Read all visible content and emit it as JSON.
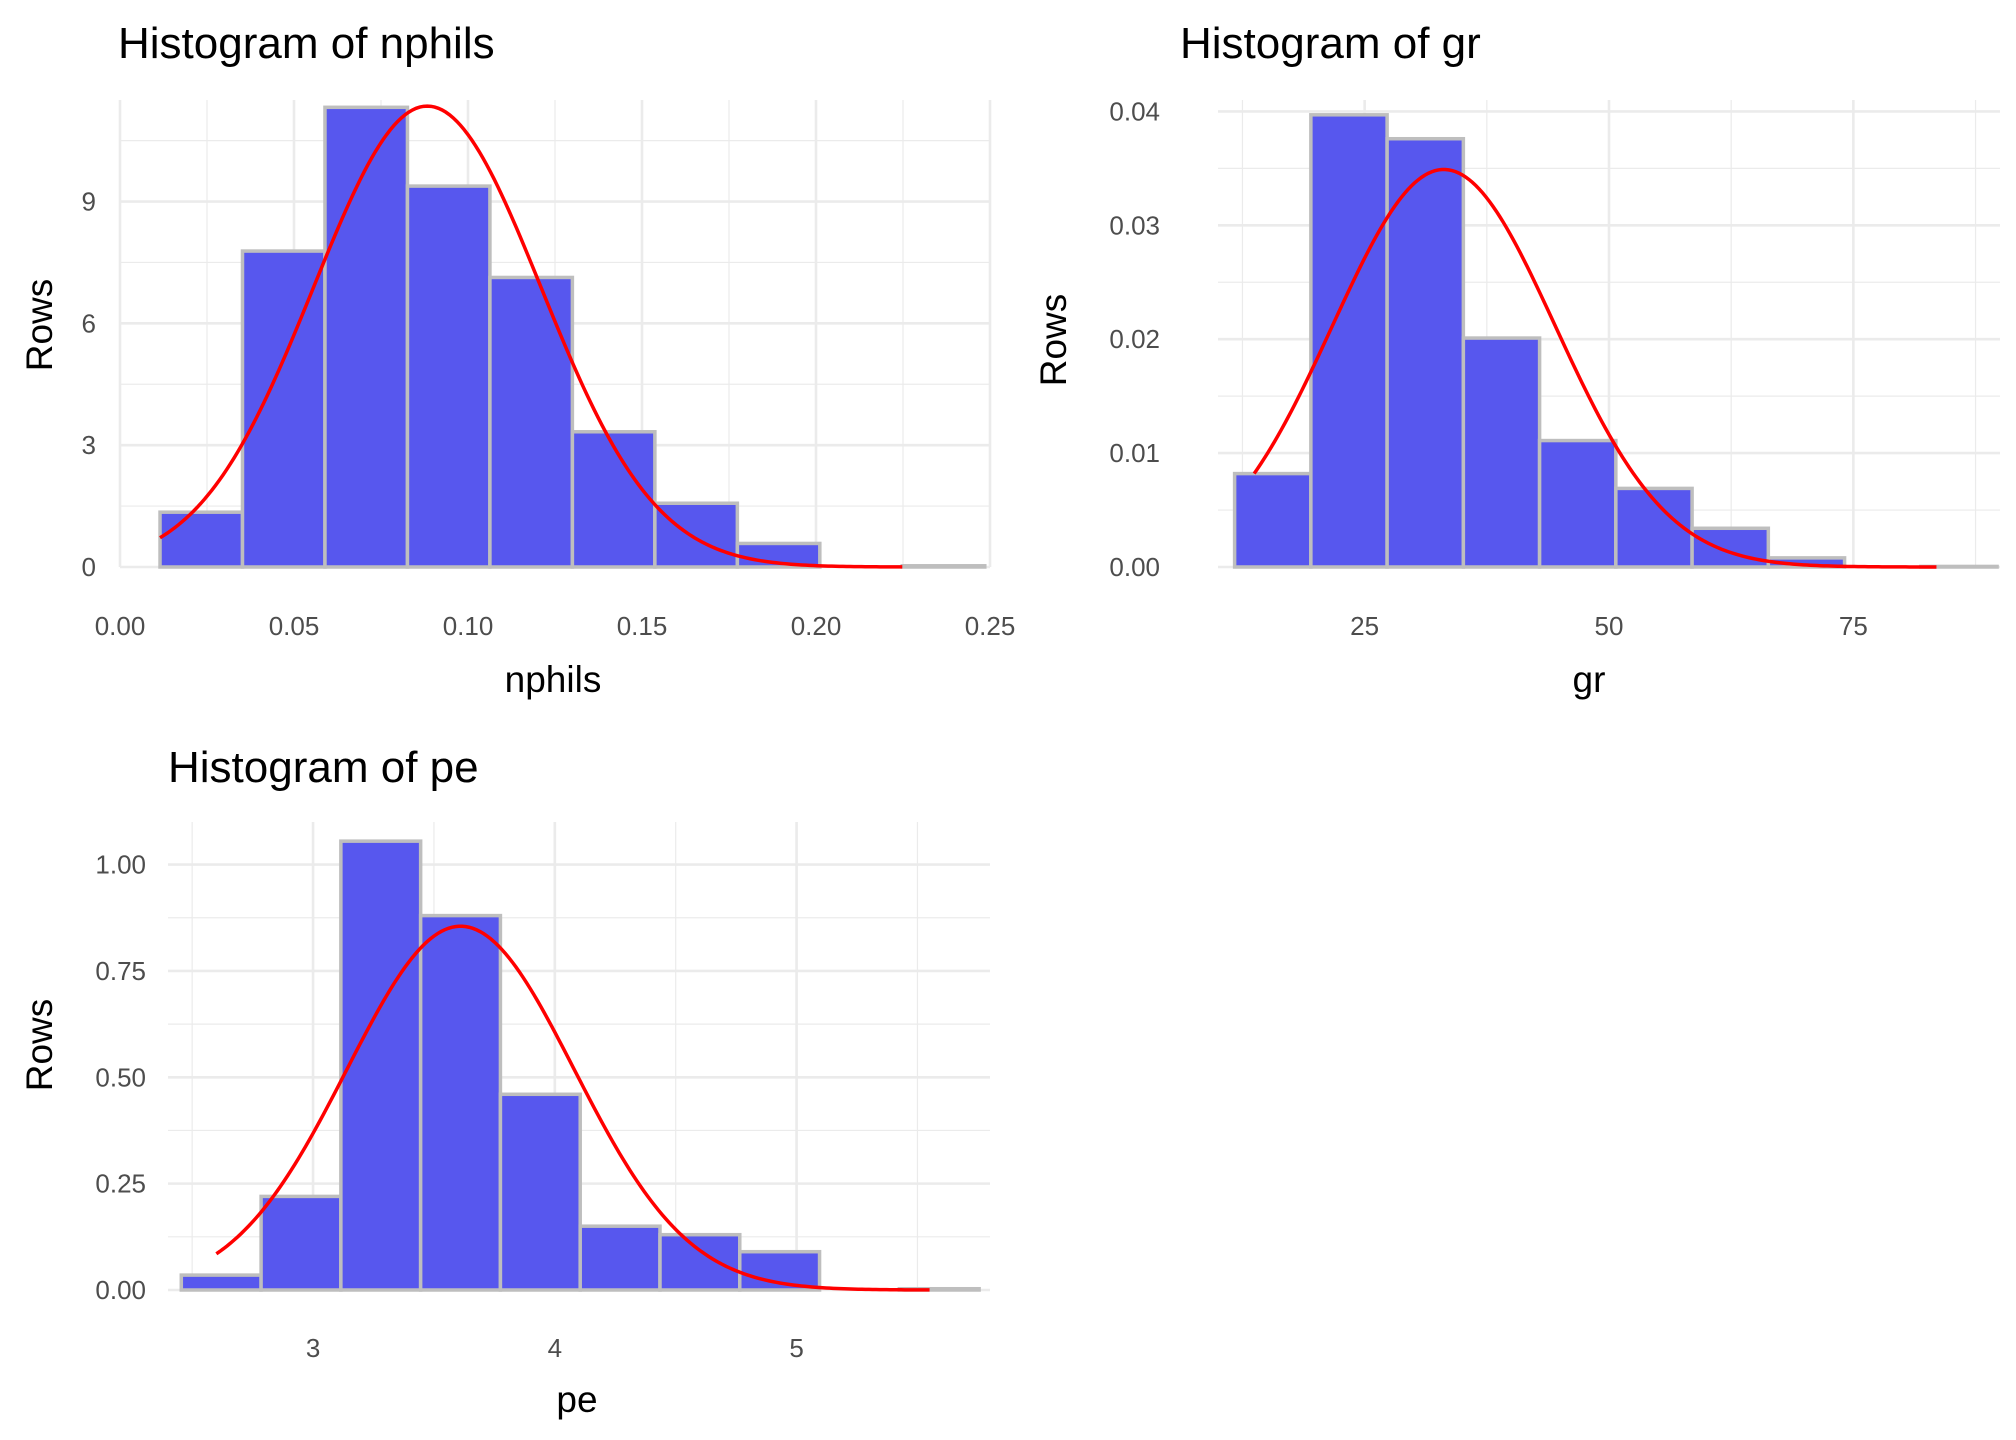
{
  "chart_data": [
    {
      "type": "bar",
      "title": "Histogram of nphils",
      "xlabel": "nphils",
      "ylabel": "Rows",
      "xlim": [
        0.0,
        0.25
      ],
      "ylim": [
        0,
        11.5
      ],
      "x_ticks": [
        {
          "value": 0.0,
          "label": "0.00"
        },
        {
          "value": 0.05,
          "label": "0.05"
        },
        {
          "value": 0.1,
          "label": "0.10"
        },
        {
          "value": 0.15,
          "label": "0.15"
        },
        {
          "value": 0.2,
          "label": "0.20"
        },
        {
          "value": 0.25,
          "label": "0.25"
        }
      ],
      "y_ticks": [
        {
          "value": 0,
          "label": "0"
        },
        {
          "value": 3,
          "label": "3"
        },
        {
          "value": 6,
          "label": "6"
        },
        {
          "value": 9,
          "label": "9"
        }
      ],
      "bins": [
        {
          "start": 0.0115,
          "end": 0.0352,
          "value": 1.35
        },
        {
          "start": 0.0352,
          "end": 0.0589,
          "value": 7.78
        },
        {
          "start": 0.0589,
          "end": 0.0826,
          "value": 11.32
        },
        {
          "start": 0.0826,
          "end": 0.1063,
          "value": 9.38
        },
        {
          "start": 0.1063,
          "end": 0.13,
          "value": 7.13
        },
        {
          "start": 0.13,
          "end": 0.1537,
          "value": 3.33
        },
        {
          "start": 0.1537,
          "end": 0.1774,
          "value": 1.57
        },
        {
          "start": 0.1774,
          "end": 0.2011,
          "value": 0.58
        },
        {
          "start": 0.2011,
          "end": 0.2248,
          "value": 0.0
        },
        {
          "start": 0.2248,
          "end": 0.2485,
          "value": 0.03
        }
      ],
      "normal_curve": {
        "mean": 0.0883,
        "sd": 0.0327,
        "peak": 11.35,
        "from": 0.0115,
        "to": 0.2248
      }
    },
    {
      "type": "bar",
      "title": "Histogram of gr",
      "xlabel": "gr",
      "ylabel": "Rows",
      "xlim": [
        10,
        90
      ],
      "ylim": [
        0,
        0.041
      ],
      "x_ticks": [
        {
          "value": 25,
          "label": "25"
        },
        {
          "value": 50,
          "label": "50"
        },
        {
          "value": 75,
          "label": "75"
        }
      ],
      "y_ticks": [
        {
          "value": 0.0,
          "label": "0.00"
        },
        {
          "value": 0.01,
          "label": "0.01"
        },
        {
          "value": 0.02,
          "label": "0.02"
        },
        {
          "value": 0.03,
          "label": "0.03"
        },
        {
          "value": 0.04,
          "label": "0.04"
        }
      ],
      "bins": [
        {
          "start": 11.7,
          "end": 19.5,
          "value": 0.0082
        },
        {
          "start": 19.5,
          "end": 27.3,
          "value": 0.0397
        },
        {
          "start": 27.3,
          "end": 35.1,
          "value": 0.0376
        },
        {
          "start": 35.1,
          "end": 42.9,
          "value": 0.0201
        },
        {
          "start": 42.9,
          "end": 50.7,
          "value": 0.0111
        },
        {
          "start": 50.7,
          "end": 58.5,
          "value": 0.0069
        },
        {
          "start": 58.5,
          "end": 66.3,
          "value": 0.0034
        },
        {
          "start": 66.3,
          "end": 74.1,
          "value": 0.0008
        },
        {
          "start": 74.1,
          "end": 81.9,
          "value": 0.0
        },
        {
          "start": 81.9,
          "end": 89.7,
          "value": 5e-05
        }
      ],
      "normal_curve": {
        "mean": 33.1,
        "sd": 11.4,
        "peak": 0.0349,
        "from": 13.7,
        "to": 83.5
      }
    },
    {
      "type": "bar",
      "title": "Histogram of pe",
      "xlabel": "pe",
      "ylabel": "Rows",
      "xlim": [
        2.4,
        5.8
      ],
      "ylim": [
        0,
        1.1
      ],
      "x_ticks": [
        {
          "value": 3,
          "label": "3"
        },
        {
          "value": 4,
          "label": "4"
        },
        {
          "value": 5,
          "label": "5"
        }
      ],
      "y_ticks": [
        {
          "value": 0.0,
          "label": "0.00"
        },
        {
          "value": 0.25,
          "label": "0.25"
        },
        {
          "value": 0.5,
          "label": "0.50"
        },
        {
          "value": 0.75,
          "label": "0.75"
        },
        {
          "value": 1.0,
          "label": "1.00"
        }
      ],
      "bins": [
        {
          "start": 2.455,
          "end": 2.785,
          "value": 0.035
        },
        {
          "start": 2.785,
          "end": 3.115,
          "value": 0.22
        },
        {
          "start": 3.115,
          "end": 3.445,
          "value": 1.055
        },
        {
          "start": 3.445,
          "end": 3.775,
          "value": 0.88
        },
        {
          "start": 3.775,
          "end": 4.105,
          "value": 0.46
        },
        {
          "start": 4.105,
          "end": 4.435,
          "value": 0.15
        },
        {
          "start": 4.435,
          "end": 4.765,
          "value": 0.13
        },
        {
          "start": 4.765,
          "end": 5.095,
          "value": 0.09
        },
        {
          "start": 5.095,
          "end": 5.425,
          "value": 0.0
        },
        {
          "start": 5.425,
          "end": 5.755,
          "value": 0.003
        }
      ],
      "normal_curve": {
        "mean": 3.61,
        "sd": 0.47,
        "peak": 0.855,
        "from": 2.6,
        "to": 5.55
      }
    }
  ],
  "colors": {
    "bar_fill": "#5757EE",
    "bar_outline": "#BEBEBE",
    "curve": "#FF0000",
    "grid": "#EBEBEB",
    "tick_text": "#4D4D4D",
    "text": "#000000"
  }
}
